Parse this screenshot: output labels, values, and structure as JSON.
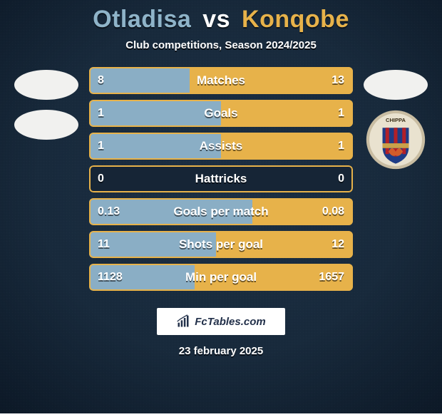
{
  "title": {
    "player1": "Otladisa",
    "vs": "vs",
    "player2": "Konqobe",
    "player1_color": "#8fb4c9",
    "vs_color": "#ffffff",
    "player2_color": "#e7b24a",
    "fontsize": 34
  },
  "subtitle": {
    "text": "Club competitions, Season 2024/2025",
    "fontsize": 15,
    "color": "#ffffff"
  },
  "background": {
    "color_top": "#1c2f43",
    "color_mid": "#1a2a3c",
    "color_bottom": "#142233",
    "vignette_color": "#0b1622"
  },
  "left_side": {
    "avatar_color": "#f1f1ef",
    "club_shown": true,
    "club_bg": "#f1f1ef"
  },
  "right_side": {
    "avatar_color": "#f1f1ef",
    "club_shown": true,
    "club_logo": {
      "ring_outer": "#c9bda2",
      "ring_text_bg": "#e9e2cf",
      "shield_top": "#1e3c86",
      "shield_stripe": "#b22028",
      "shield_gold": "#c8a24a",
      "flames": "#d35c2a",
      "text": "CHIPPA"
    }
  },
  "bar_style": {
    "height": 38,
    "radius": 6,
    "label_fontsize": 17,
    "value_fontsize": 16,
    "left_color": "#8aaec5",
    "right_color": "#e7b24a",
    "bg_color": "#162536",
    "border_color": "#e7b24a",
    "text_color": "#ffffff"
  },
  "stats": [
    {
      "label": "Matches",
      "left_val": "8",
      "right_val": "13",
      "left_pct": 38,
      "right_pct": 62
    },
    {
      "label": "Goals",
      "left_val": "1",
      "right_val": "1",
      "left_pct": 50,
      "right_pct": 50
    },
    {
      "label": "Assists",
      "left_val": "1",
      "right_val": "1",
      "left_pct": 50,
      "right_pct": 50
    },
    {
      "label": "Hattricks",
      "left_val": "0",
      "right_val": "0",
      "left_pct": 0,
      "right_pct": 0
    },
    {
      "label": "Goals per match",
      "left_val": "0.13",
      "right_val": "0.08",
      "left_pct": 62,
      "right_pct": 38
    },
    {
      "label": "Shots per goal",
      "left_val": "11",
      "right_val": "12",
      "left_pct": 48,
      "right_pct": 52
    },
    {
      "label": "Min per goal",
      "left_val": "1128",
      "right_val": "1657",
      "left_pct": 40,
      "right_pct": 60
    }
  ],
  "footer": {
    "brand": "FcTables.com",
    "date": "23 february 2025",
    "logo_bg": "#ffffff",
    "logo_fg": "#22304a"
  }
}
